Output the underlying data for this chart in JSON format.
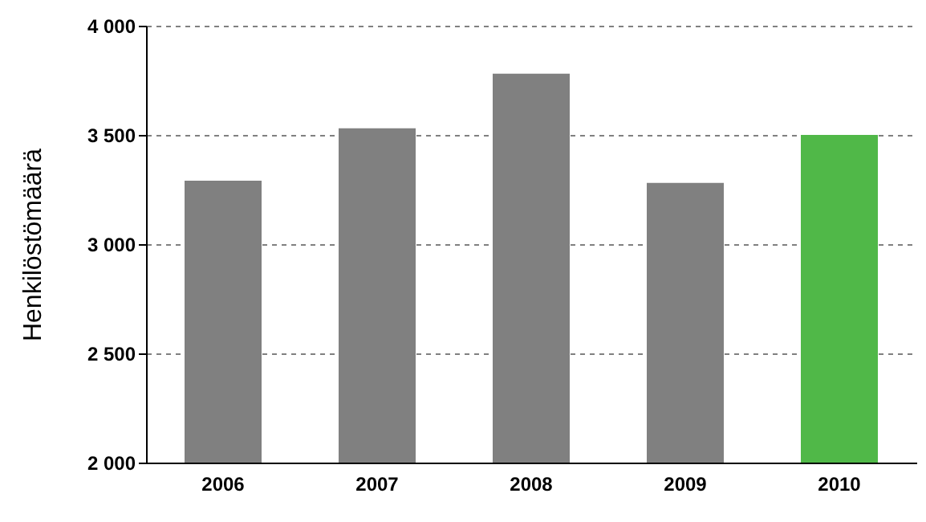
{
  "chart_data": {
    "type": "bar",
    "ylabel": "Henkilöstömäärä",
    "categories": [
      "2006",
      "2007",
      "2008",
      "2009",
      "2010"
    ],
    "values": [
      3290,
      3530,
      3780,
      3280,
      3500
    ],
    "colors": [
      "#808080",
      "#808080",
      "#808080",
      "#808080",
      "#50b848"
    ],
    "ylim": [
      2000,
      4000
    ],
    "yticks": [
      {
        "value": 2000,
        "label": "2 000"
      },
      {
        "value": 2500,
        "label": "2 500"
      },
      {
        "value": 3000,
        "label": "3 000"
      },
      {
        "value": 3500,
        "label": "3 500"
      },
      {
        "value": 4000,
        "label": "4 000"
      }
    ],
    "grid": "y"
  }
}
